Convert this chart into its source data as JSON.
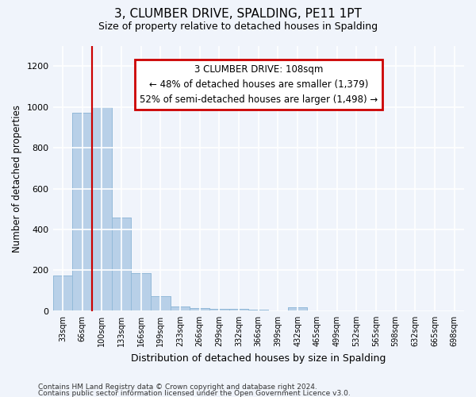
{
  "title": "3, CLUMBER DRIVE, SPALDING, PE11 1PT",
  "subtitle": "Size of property relative to detached houses in Spalding",
  "xlabel": "Distribution of detached houses by size in Spalding",
  "ylabel": "Number of detached properties",
  "bar_color": "#b8d0e8",
  "bar_edge_color": "#90b8d8",
  "background_color": "#f0f4fb",
  "grid_color": "#ffffff",
  "categories": [
    "33sqm",
    "66sqm",
    "100sqm",
    "133sqm",
    "166sqm",
    "199sqm",
    "233sqm",
    "266sqm",
    "299sqm",
    "332sqm",
    "366sqm",
    "399sqm",
    "432sqm",
    "465sqm",
    "499sqm",
    "532sqm",
    "565sqm",
    "598sqm",
    "632sqm",
    "665sqm",
    "698sqm"
  ],
  "values": [
    175,
    970,
    1000,
    460,
    185,
    75,
    22,
    17,
    12,
    10,
    8,
    0,
    18,
    0,
    0,
    0,
    0,
    0,
    0,
    0,
    0
  ],
  "ylim": [
    0,
    1300
  ],
  "yticks": [
    0,
    200,
    400,
    600,
    800,
    1000,
    1200
  ],
  "vline_bin_index": 2,
  "annotation_title": "3 CLUMBER DRIVE: 108sqm",
  "annotation_line1": "← 48% of detached houses are smaller (1,379)",
  "annotation_line2": "52% of semi-detached houses are larger (1,498) →",
  "annotation_box_color": "#ffffff",
  "annotation_border_color": "#cc0000",
  "vline_color": "#cc0000",
  "footer_line1": "Contains HM Land Registry data © Crown copyright and database right 2024.",
  "footer_line2": "Contains public sector information licensed under the Open Government Licence v3.0."
}
